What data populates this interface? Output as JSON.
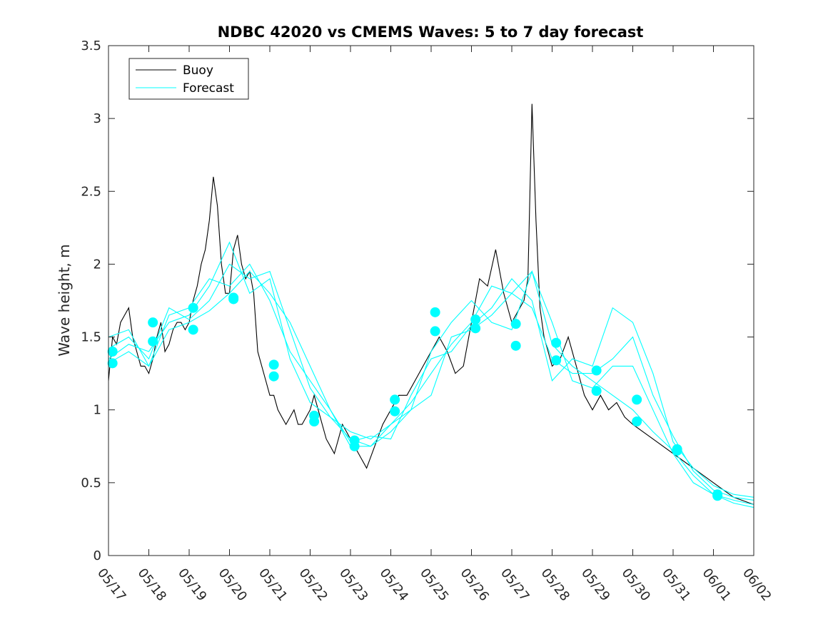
{
  "chart_data": {
    "type": "line",
    "title": "NDBC 42020 vs CMEMS Waves: 5 to 7 day forecast",
    "xlabel": "",
    "ylabel": "Wave height, m",
    "x_ticks": [
      "05/17",
      "05/18",
      "05/19",
      "05/20",
      "05/21",
      "05/22",
      "05/23",
      "05/24",
      "05/25",
      "05/26",
      "05/27",
      "05/28",
      "05/29",
      "05/30",
      "05/31",
      "06/01",
      "06/02"
    ],
    "xlim_days": [
      0,
      16
    ],
    "ylim": [
      0,
      3.5
    ],
    "y_ticks": [
      0,
      0.5,
      1,
      1.5,
      2,
      2.5,
      3,
      3.5
    ],
    "grid": false,
    "legend": {
      "placement": "top-left",
      "entries": [
        "Buoy",
        "Forecast"
      ]
    },
    "colors": {
      "buoy": "#000000",
      "forecast": "#00ffff"
    },
    "series": [
      {
        "name": "Buoy",
        "x": [
          0.0,
          0.1,
          0.2,
          0.3,
          0.4,
          0.5,
          0.6,
          0.7,
          0.8,
          0.9,
          1.0,
          1.1,
          1.2,
          1.3,
          1.4,
          1.5,
          1.6,
          1.7,
          1.8,
          1.9,
          2.0,
          2.1,
          2.2,
          2.3,
          2.4,
          2.5,
          2.6,
          2.7,
          2.8,
          2.9,
          3.0,
          3.1,
          3.2,
          3.3,
          3.4,
          3.5,
          3.6,
          3.7,
          3.8,
          3.9,
          4.0,
          4.1,
          4.2,
          4.3,
          4.4,
          4.5,
          4.6,
          4.7,
          4.8,
          4.9,
          5.0,
          5.1,
          5.2,
          5.3,
          5.4,
          5.5,
          5.6,
          5.7,
          5.8,
          5.9,
          6.0,
          6.2,
          6.4,
          6.6,
          6.8,
          7.0,
          7.2,
          7.4,
          7.6,
          7.8,
          8.0,
          8.2,
          8.4,
          8.6,
          8.8,
          9.0,
          9.2,
          9.4,
          9.6,
          9.8,
          10.0,
          10.2,
          10.3,
          10.4,
          10.5,
          10.6,
          10.7,
          10.8,
          10.9,
          11.0,
          11.2,
          11.4,
          11.6,
          11.8,
          12.0,
          12.2,
          12.4,
          12.6,
          12.8,
          13.0,
          13.5,
          14.0,
          14.5,
          15.0,
          15.5,
          16.0
        ],
        "y": [
          1.2,
          1.5,
          1.45,
          1.6,
          1.65,
          1.7,
          1.5,
          1.4,
          1.3,
          1.3,
          1.25,
          1.35,
          1.5,
          1.6,
          1.4,
          1.45,
          1.55,
          1.6,
          1.6,
          1.55,
          1.6,
          1.75,
          1.85,
          2.0,
          2.1,
          2.3,
          2.6,
          2.4,
          2.0,
          1.8,
          1.8,
          2.1,
          2.2,
          2.0,
          1.9,
          1.95,
          1.8,
          1.4,
          1.3,
          1.2,
          1.1,
          1.1,
          1.0,
          0.95,
          0.9,
          0.95,
          1.0,
          0.9,
          0.9,
          0.95,
          1.0,
          1.1,
          1.0,
          0.9,
          0.8,
          0.75,
          0.7,
          0.8,
          0.9,
          0.85,
          0.8,
          0.7,
          0.6,
          0.75,
          0.9,
          1.0,
          1.1,
          1.1,
          1.2,
          1.3,
          1.4,
          1.5,
          1.4,
          1.25,
          1.3,
          1.6,
          1.9,
          1.85,
          2.1,
          1.8,
          1.6,
          1.7,
          1.75,
          1.9,
          3.1,
          2.3,
          1.7,
          1.5,
          1.4,
          1.3,
          1.35,
          1.5,
          1.3,
          1.1,
          1.0,
          1.1,
          1.0,
          1.05,
          0.95,
          0.9,
          0.8,
          0.7,
          0.6,
          0.5,
          0.4,
          0.35
        ]
      },
      {
        "name": "Forecast",
        "x": [
          0.0,
          0.5,
          1.0,
          1.5,
          2.0,
          2.5,
          3.0,
          3.5,
          4.0,
          4.5,
          5.0,
          5.5,
          6.0,
          6.5,
          7.0,
          7.5,
          8.0,
          8.5,
          9.0,
          9.5,
          10.0,
          10.5,
          11.0,
          11.5,
          12.0,
          12.5,
          13.0,
          13.5,
          14.0,
          14.5,
          15.0,
          15.5,
          16.0
        ],
        "y": [
          1.35,
          1.45,
          1.4,
          1.6,
          1.65,
          1.85,
          2.15,
          1.8,
          1.9,
          1.35,
          1.05,
          0.95,
          0.8,
          0.75,
          0.85,
          1.0,
          1.4,
          1.6,
          1.75,
          1.6,
          1.55,
          1.95,
          1.45,
          1.3,
          1.2,
          1.1,
          1.0,
          0.85,
          0.72,
          0.55,
          0.42,
          0.38,
          0.35
        ]
      },
      {
        "name": "",
        "x": [
          0.0,
          0.5,
          1.0,
          1.5,
          2.0,
          2.5,
          3.0,
          3.5,
          4.0,
          4.5,
          5.0,
          5.5,
          6.0,
          6.5,
          7.0,
          7.5,
          8.0,
          8.5,
          9.0,
          9.5,
          10.0,
          10.5,
          11.0,
          11.5,
          12.0,
          12.5,
          13.0,
          13.5,
          14.0,
          14.5,
          15.0,
          15.5,
          16.0
        ],
        "y": [
          1.42,
          1.5,
          1.35,
          1.7,
          1.62,
          1.75,
          2.0,
          1.9,
          1.95,
          1.55,
          1.15,
          0.95,
          0.85,
          0.8,
          0.9,
          1.05,
          1.25,
          1.45,
          1.6,
          1.85,
          1.8,
          1.7,
          1.35,
          1.25,
          1.25,
          1.35,
          1.5,
          1.1,
          0.82,
          0.58,
          0.45,
          0.4,
          0.38
        ]
      },
      {
        "name": "",
        "x": [
          0.0,
          0.5,
          1.0,
          1.5,
          2.0,
          2.5,
          3.0,
          3.5,
          4.0,
          4.5,
          5.0,
          5.5,
          6.0,
          6.5,
          7.0,
          7.5,
          8.0,
          8.5,
          9.0,
          9.5,
          10.0,
          10.5,
          11.0,
          11.5,
          12.0,
          12.5,
          13.0,
          13.5,
          14.0,
          14.5,
          15.0,
          15.5,
          16.0
        ],
        "y": [
          1.5,
          1.55,
          1.3,
          1.65,
          1.7,
          1.9,
          1.85,
          2.0,
          1.75,
          1.4,
          1.2,
          1.0,
          0.78,
          0.82,
          0.8,
          1.1,
          1.35,
          1.4,
          1.58,
          1.7,
          1.9,
          1.75,
          1.2,
          1.35,
          1.3,
          1.7,
          1.6,
          1.25,
          0.78,
          0.6,
          0.48,
          0.42,
          0.4
        ]
      },
      {
        "name": "",
        "x": [
          0.0,
          0.5,
          1.0,
          1.5,
          2.0,
          2.5,
          3.0,
          3.5,
          4.0,
          4.5,
          5.0,
          5.5,
          6.0,
          6.5,
          7.0,
          7.5,
          8.0,
          8.5,
          9.0,
          9.5,
          10.0,
          10.5,
          11.0,
          11.5,
          12.0,
          12.5,
          13.0,
          13.5,
          14.0,
          14.5,
          15.0,
          15.5,
          16.0
        ],
        "y": [
          1.32,
          1.4,
          1.3,
          1.55,
          1.6,
          1.68,
          1.8,
          1.95,
          1.8,
          1.6,
          1.3,
          1.0,
          0.75,
          0.75,
          0.9,
          1.0,
          1.1,
          1.5,
          1.55,
          1.65,
          1.8,
          1.95,
          1.6,
          1.2,
          1.15,
          1.3,
          1.3,
          1.0,
          0.7,
          0.5,
          0.42,
          0.36,
          0.33
        ]
      }
    ],
    "markers": [
      {
        "x": 0.1,
        "y": 1.4
      },
      {
        "x": 0.1,
        "y": 1.32
      },
      {
        "x": 1.1,
        "y": 1.6
      },
      {
        "x": 1.1,
        "y": 1.47
      },
      {
        "x": 2.1,
        "y": 1.7
      },
      {
        "x": 2.1,
        "y": 1.55
      },
      {
        "x": 3.1,
        "y": 1.77
      },
      {
        "x": 3.1,
        "y": 1.76
      },
      {
        "x": 4.1,
        "y": 1.31
      },
      {
        "x": 4.1,
        "y": 1.23
      },
      {
        "x": 5.1,
        "y": 0.96
      },
      {
        "x": 5.1,
        "y": 0.92
      },
      {
        "x": 6.1,
        "y": 0.79
      },
      {
        "x": 6.1,
        "y": 0.75
      },
      {
        "x": 7.1,
        "y": 1.07
      },
      {
        "x": 7.1,
        "y": 0.99
      },
      {
        "x": 8.1,
        "y": 1.67
      },
      {
        "x": 8.1,
        "y": 1.54
      },
      {
        "x": 9.1,
        "y": 1.62
      },
      {
        "x": 9.1,
        "y": 1.56
      },
      {
        "x": 10.1,
        "y": 1.59
      },
      {
        "x": 10.1,
        "y": 1.44
      },
      {
        "x": 11.1,
        "y": 1.46
      },
      {
        "x": 11.1,
        "y": 1.34
      },
      {
        "x": 12.1,
        "y": 1.27
      },
      {
        "x": 12.1,
        "y": 1.13
      },
      {
        "x": 13.1,
        "y": 1.07
      },
      {
        "x": 13.1,
        "y": 0.92
      },
      {
        "x": 14.1,
        "y": 0.73
      },
      {
        "x": 14.1,
        "y": 0.72
      },
      {
        "x": 15.1,
        "y": 0.42
      },
      {
        "x": 15.1,
        "y": 0.41
      }
    ]
  }
}
